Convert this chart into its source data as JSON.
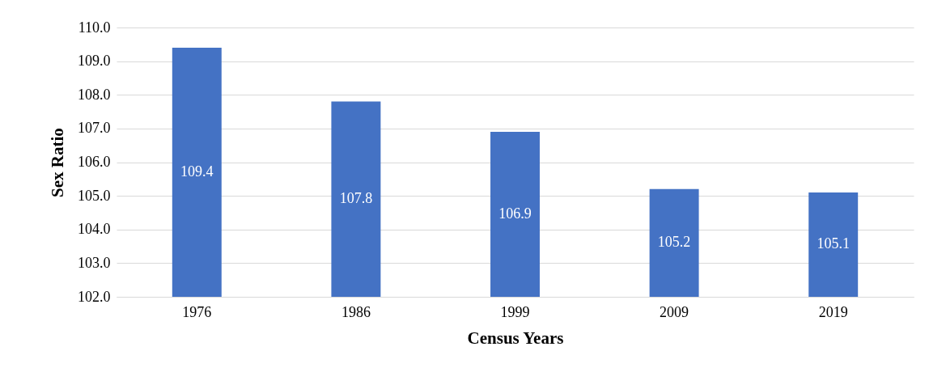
{
  "chart_data": {
    "type": "bar",
    "xlabel": "Census Years",
    "ylabel": "Sex Ratio",
    "categories": [
      "1976",
      "1986",
      "1999",
      "2009",
      "2019"
    ],
    "series": [
      {
        "color": "#4472c4",
        "values": [
          109.4,
          107.8,
          106.9,
          105.2,
          105.1
        ]
      }
    ],
    "ylim": [
      102,
      110
    ],
    "yticks": [
      {
        "value": 102,
        "label": "102.0"
      },
      {
        "value": 103,
        "label": "103.0"
      },
      {
        "value": 104,
        "label": "104.0"
      },
      {
        "value": 105,
        "label": "105.0"
      },
      {
        "value": 106,
        "label": "106.0"
      },
      {
        "value": 107,
        "label": "107.0"
      },
      {
        "value": 108,
        "label": "108.0"
      },
      {
        "value": 109,
        "label": "109.0"
      },
      {
        "value": 110,
        "label": "110.0"
      }
    ],
    "grid": "y",
    "data_labels": true
  }
}
